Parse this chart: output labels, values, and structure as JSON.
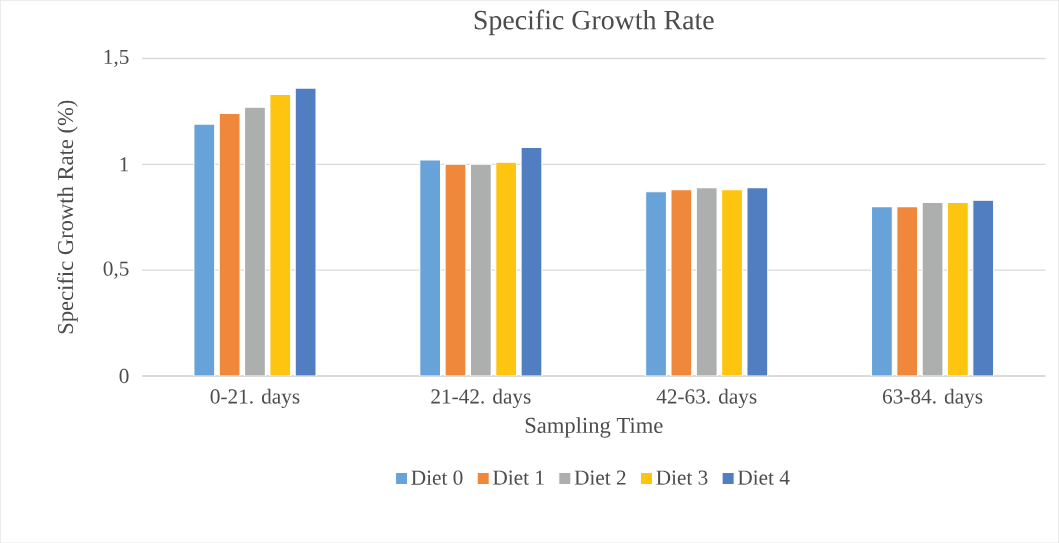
{
  "chart_data": {
    "type": "bar",
    "title": "Specific Growth Rate",
    "xlabel": "Sampling Time",
    "ylabel": "Specific Growth Rate (%)",
    "categories": [
      "0-21. days",
      "21-42. days",
      "42-63. days",
      "63-84. days"
    ],
    "series": [
      {
        "name": "Diet 0",
        "color": "#67a3d8",
        "values": [
          1.19,
          1.02,
          0.87,
          0.8
        ]
      },
      {
        "name": "Diet 1",
        "color": "#f0883b",
        "values": [
          1.24,
          1.0,
          0.88,
          0.8
        ]
      },
      {
        "name": "Diet 2",
        "color": "#adaeae",
        "values": [
          1.27,
          1.0,
          0.89,
          0.82
        ]
      },
      {
        "name": "Diet 3",
        "color": "#fdc510",
        "values": [
          1.33,
          1.01,
          0.88,
          0.82
        ]
      },
      {
        "name": "Diet 4",
        "color": "#517ec0",
        "values": [
          1.36,
          1.08,
          0.89,
          0.83
        ]
      }
    ],
    "ylim": [
      0,
      1.5
    ],
    "yticks": [
      0,
      {
        "value": 0.5,
        "label": "0,5"
      },
      1,
      {
        "value": 1.5,
        "label": "1,5"
      }
    ],
    "grid": "y",
    "legend": "bottom"
  }
}
